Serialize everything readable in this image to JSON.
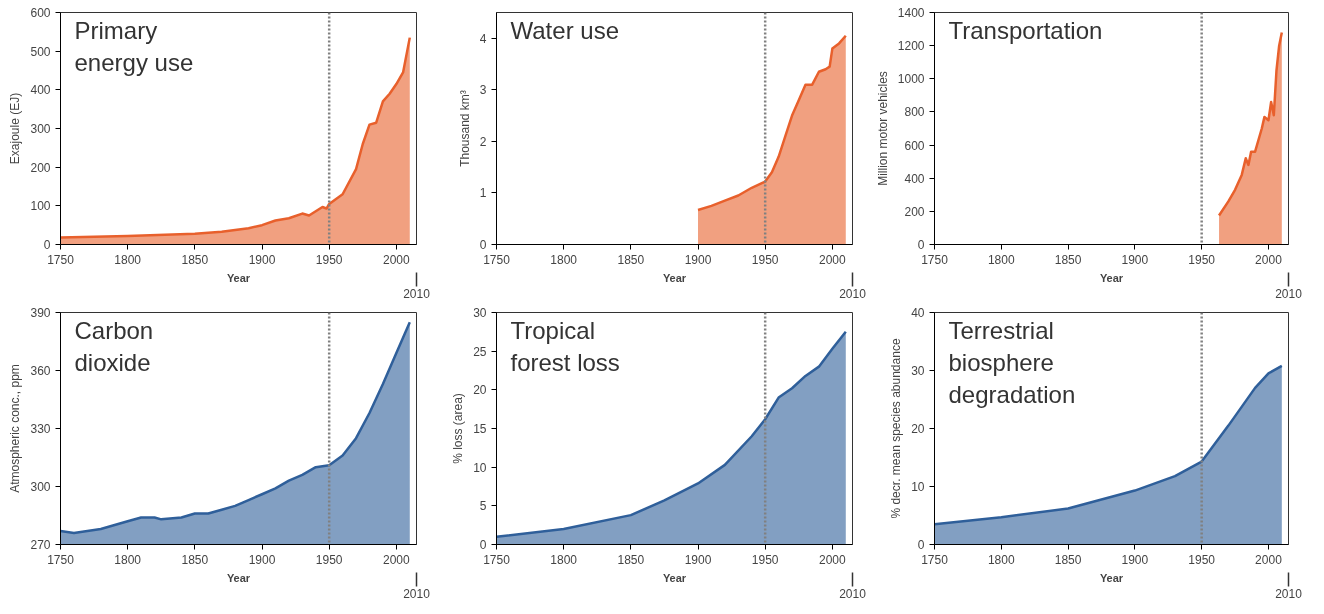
{
  "chart_data": [
    {
      "type": "area",
      "title": "Primary energy use",
      "xlabel": "Year",
      "ylabel": "Exajoule (EJ)",
      "annotations": [
        "2010"
      ],
      "xlim": [
        1750,
        2015
      ],
      "ylim": [
        0,
        600
      ],
      "xticks": [
        1750,
        1800,
        1850,
        1900,
        1950,
        2000
      ],
      "yticks": [
        0,
        100,
        200,
        300,
        400,
        500,
        600
      ],
      "ref_lines": [
        {
          "axis": "x",
          "value": 1950,
          "color": "#808080",
          "line_style": "dotted"
        }
      ],
      "series": [
        {
          "color": "#e8602c",
          "x": [
            1750,
            1800,
            1850,
            1870,
            1890,
            1900,
            1910,
            1920,
            1930,
            1935,
            1945,
            1948,
            1950,
            1960,
            1970,
            1975,
            1980,
            1985,
            1990,
            1995,
            2000,
            2005,
            2010
          ],
          "values": [
            18,
            22,
            28,
            33,
            42,
            50,
            62,
            68,
            80,
            75,
            97,
            93,
            105,
            130,
            195,
            260,
            310,
            315,
            370,
            390,
            415,
            445,
            535
          ]
        }
      ]
    },
    {
      "type": "area",
      "title": "Water use",
      "xlabel": "Year",
      "ylabel": "Thousand km³",
      "annotations": [
        "2010"
      ],
      "xlim": [
        1750,
        2015
      ],
      "ylim": [
        0,
        4.5
      ],
      "xticks": [
        1750,
        1800,
        1850,
        1900,
        1950,
        2000
      ],
      "yticks": [
        0,
        1,
        2,
        3,
        4
      ],
      "ref_lines": [
        {
          "axis": "x",
          "value": 1950,
          "color": "#808080",
          "line_style": "dotted"
        }
      ],
      "series": [
        {
          "color": "#e8602c",
          "x": [
            1900,
            1910,
            1920,
            1930,
            1940,
            1950,
            1955,
            1960,
            1965,
            1970,
            1975,
            1980,
            1985,
            1990,
            1995,
            1998,
            2000,
            2005,
            2010
          ],
          "values": [
            0.67,
            0.75,
            0.85,
            0.95,
            1.1,
            1.22,
            1.4,
            1.7,
            2.1,
            2.5,
            2.8,
            3.1,
            3.1,
            3.35,
            3.4,
            3.45,
            3.8,
            3.9,
            4.05
          ]
        }
      ]
    },
    {
      "type": "area",
      "title": "Transportation",
      "xlabel": "Year",
      "ylabel": "Million motor vehicles",
      "annotations": [
        "2010"
      ],
      "xlim": [
        1750,
        2015
      ],
      "ylim": [
        0,
        1400
      ],
      "xticks": [
        1750,
        1800,
        1850,
        1900,
        1950,
        2000
      ],
      "yticks": [
        0,
        200,
        400,
        600,
        800,
        1000,
        1200,
        1400
      ],
      "ref_lines": [
        {
          "axis": "x",
          "value": 1950,
          "color": "#808080",
          "line_style": "dotted"
        }
      ],
      "series": [
        {
          "color": "#e8602c",
          "x": [
            1963,
            1970,
            1975,
            1980,
            1983,
            1985,
            1987,
            1990,
            1995,
            1997,
            2000,
            2002,
            2004,
            2006,
            2008,
            2010
          ],
          "values": [
            175,
            260,
            330,
            420,
            520,
            480,
            560,
            560,
            700,
            770,
            750,
            860,
            780,
            1050,
            1200,
            1280
          ]
        }
      ]
    },
    {
      "type": "area",
      "title": "Carbon dioxide",
      "xlabel": "Year",
      "ylabel": "Atmospheric conc., ppm",
      "annotations": [
        "2010"
      ],
      "xlim": [
        1750,
        2015
      ],
      "ylim": [
        270,
        390
      ],
      "xticks": [
        1750,
        1800,
        1850,
        1900,
        1950,
        2000
      ],
      "yticks": [
        270,
        300,
        330,
        360,
        390
      ],
      "ref_lines": [
        {
          "axis": "x",
          "value": 1950,
          "color": "#808080",
          "line_style": "dotted"
        }
      ],
      "series": [
        {
          "color": "#2f5f9a",
          "x": [
            1750,
            1760,
            1780,
            1800,
            1810,
            1820,
            1825,
            1840,
            1850,
            1860,
            1870,
            1880,
            1890,
            1900,
            1910,
            1920,
            1930,
            1940,
            1950,
            1960,
            1970,
            1980,
            1990,
            2000,
            2010
          ],
          "values": [
            277,
            276,
            278,
            282,
            284,
            284,
            283,
            284,
            286,
            286,
            288,
            290,
            293,
            296,
            299,
            303,
            306,
            310,
            311,
            316,
            325,
            338,
            353,
            369,
            385
          ]
        }
      ]
    },
    {
      "type": "area",
      "title": "Tropical forest loss",
      "xlabel": "Year",
      "ylabel": "% loss (area)",
      "annotations": [
        "2010"
      ],
      "xlim": [
        1750,
        2015
      ],
      "ylim": [
        0,
        30
      ],
      "xticks": [
        1750,
        1800,
        1850,
        1900,
        1950,
        2000
      ],
      "yticks": [
        0,
        5,
        10,
        15,
        20,
        25,
        30
      ],
      "ref_lines": [
        {
          "axis": "x",
          "value": 1950,
          "color": "#808080",
          "line_style": "dotted"
        }
      ],
      "series": [
        {
          "color": "#2f5f9a",
          "x": [
            1750,
            1800,
            1850,
            1875,
            1900,
            1920,
            1940,
            1950,
            1960,
            1970,
            1980,
            1990,
            2000,
            2010
          ],
          "values": [
            1,
            2,
            3.8,
            5.7,
            7.9,
            10.3,
            14,
            16.2,
            19,
            20.2,
            21.8,
            23,
            25.3,
            27.5
          ]
        }
      ]
    },
    {
      "type": "area",
      "title": "Terrestrial biosphere degradation",
      "xlabel": "Year",
      "ylabel": "% decr. mean species abundance",
      "annotations": [
        "2010"
      ],
      "xlim": [
        1750,
        2015
      ],
      "ylim": [
        0,
        40
      ],
      "xticks": [
        1750,
        1800,
        1850,
        1900,
        1950,
        2000
      ],
      "yticks": [
        0,
        10,
        20,
        30,
        40
      ],
      "ref_lines": [
        {
          "axis": "x",
          "value": 1950,
          "color": "#808080",
          "line_style": "dotted"
        }
      ],
      "series": [
        {
          "color": "#2f5f9a",
          "x": [
            1750,
            1800,
            1850,
            1900,
            1930,
            1950,
            1970,
            1990,
            2000,
            2010
          ],
          "values": [
            3.5,
            4.7,
            6.2,
            9.3,
            11.8,
            14.3,
            20.5,
            27,
            29.5,
            30.8
          ]
        }
      ]
    }
  ]
}
